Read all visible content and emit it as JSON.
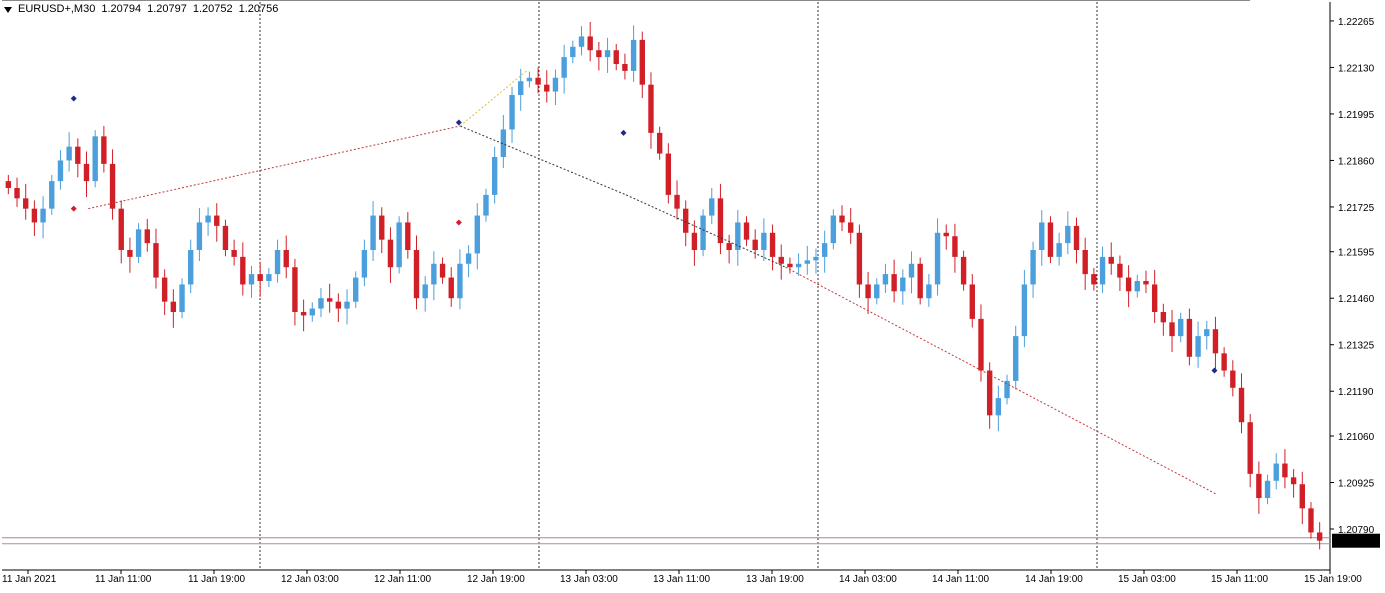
{
  "header": {
    "symbol": "EURUSD+,M30",
    "open": "1.20794",
    "high": "1.20797",
    "low": "1.20752",
    "close": "1.20756"
  },
  "chart_data": {
    "type": "candlestick",
    "title": "",
    "ylim": [
      1.207,
      1.2232
    ],
    "y_ticks": [
      "1.22265",
      "1.22130",
      "1.21995",
      "1.21860",
      "1.21725",
      "1.21595",
      "1.21460",
      "1.21325",
      "1.21190",
      "1.21060",
      "1.20925",
      "1.20790"
    ],
    "x_ticks": [
      "11 Jan 2021",
      "11 Jan 11:00",
      "11 Jan 19:00",
      "12 Jan 03:00",
      "12 Jan 11:00",
      "12 Jan 19:00",
      "13 Jan 03:00",
      "13 Jan 11:00",
      "13 Jan 19:00",
      "14 Jan 03:00",
      "14 Jan 11:00",
      "14 Jan 19:00",
      "15 Jan 03:00",
      "15 Jan 11:00",
      "15 Jan 19:00"
    ],
    "current_price": "1.20756",
    "colors": {
      "bull": "#4a9fdc",
      "bear": "#d11f28",
      "grid": "#000000",
      "axis": "#000000",
      "trend_red": "#c0393b",
      "trend_dark": "#333333"
    },
    "day_separators_after_tick": [
      2,
      5,
      8,
      11
    ],
    "candles_close_path": [
      1.2178,
      1.2175,
      1.2172,
      1.2168,
      1.2172,
      1.218,
      1.2186,
      1.219,
      1.2185,
      1.218,
      1.2193,
      1.2185,
      1.2172,
      1.216,
      1.2158,
      1.2166,
      1.2162,
      1.2152,
      1.2145,
      1.2142,
      1.215,
      1.216,
      1.2168,
      1.217,
      1.2167,
      1.216,
      1.2158,
      1.215,
      1.2153,
      1.2151,
      1.2153,
      1.216,
      1.2155,
      1.2142,
      1.2141,
      1.2143,
      1.2146,
      1.2145,
      1.2143,
      1.2145,
      1.2152,
      1.216,
      1.217,
      1.2163,
      1.2155,
      1.2168,
      1.216,
      1.2146,
      1.215,
      1.2156,
      1.2152,
      1.2146,
      1.2156,
      1.2159,
      1.217,
      1.2176,
      1.2187,
      1.2195,
      1.2205,
      1.2209,
      1.221,
      1.2208,
      1.2206,
      1.221,
      1.2216,
      1.2219,
      1.2222,
      1.2218,
      1.2216,
      1.2218,
      1.2214,
      1.2212,
      1.2221,
      1.2208,
      1.2194,
      1.2188,
      1.2176,
      1.2172,
      1.2165,
      1.216,
      1.217,
      1.2175,
      1.2162,
      1.216,
      1.2168,
      1.2163,
      1.216,
      1.2165,
      1.2158,
      1.2156,
      1.2155,
      1.2156,
      1.2157,
      1.2158,
      1.2162,
      1.217,
      1.2168,
      1.2165,
      1.215,
      1.2146,
      1.215,
      1.2153,
      1.2148,
      1.2152,
      1.2156,
      1.2146,
      1.215,
      1.2165,
      1.2164,
      1.2158,
      1.215,
      1.214,
      1.2125,
      1.2112,
      1.2117,
      1.2122,
      1.2135,
      1.215,
      1.216,
      1.2168,
      1.2158,
      1.2162,
      1.2167,
      1.216,
      1.2153,
      1.215,
      1.2158,
      1.2156,
      1.2152,
      1.2148,
      1.2151,
      1.215,
      1.2142,
      1.2139,
      1.2135,
      1.214,
      1.2129,
      1.2135,
      1.2137,
      1.213,
      1.2125,
      1.212,
      1.211,
      1.2095,
      1.2088,
      1.2093,
      1.2098,
      1.2094,
      1.2092,
      1.2085,
      1.2078,
      1.20756
    ],
    "trend_lines": [
      {
        "from": [
          0.065,
          1.2172
        ],
        "to": [
          0.345,
          1.2196
        ],
        "style": "red-dotted"
      },
      {
        "from": [
          0.345,
          1.2196
        ],
        "to": [
          0.47,
          1.2176
        ],
        "style": "dark-dotted"
      },
      {
        "from": [
          0.47,
          1.2176
        ],
        "to": [
          0.59,
          1.2155
        ],
        "style": "dark-dotted"
      },
      {
        "from": [
          0.59,
          1.2155
        ],
        "to": [
          0.915,
          1.2089
        ],
        "style": "red-dotted"
      },
      {
        "from": [
          0.345,
          1.2196
        ],
        "to": [
          0.395,
          1.2212
        ],
        "style": "yellow-dotted"
      }
    ],
    "markers": [
      {
        "x": 0.054,
        "price": 1.2204,
        "color": "#1d2c8a"
      },
      {
        "x": 0.054,
        "price": 1.2172,
        "color": "#d11f28"
      },
      {
        "x": 0.344,
        "price": 1.2197,
        "color": "#1d2c8a"
      },
      {
        "x": 0.344,
        "price": 1.2168,
        "color": "#d11f28"
      },
      {
        "x": 0.468,
        "price": 1.2194,
        "color": "#1d2c8a"
      },
      {
        "x": 0.913,
        "price": 1.2125,
        "color": "#1d2c8a"
      }
    ]
  }
}
